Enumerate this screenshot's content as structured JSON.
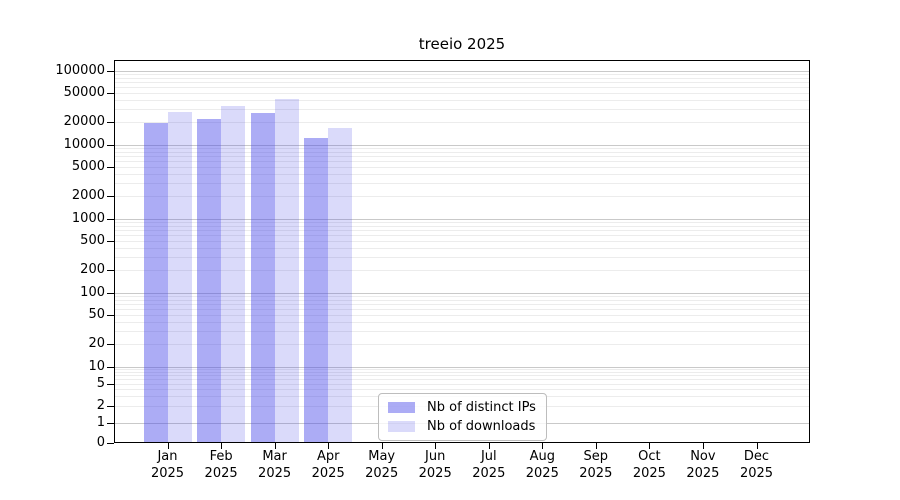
{
  "chart_data": {
    "type": "bar",
    "title": "treeio 2025",
    "xlabel": "",
    "ylabel": "",
    "yscale": "symlog (linear 0-1, log above; 1-2-5 labeled ticks)",
    "ylim": [
      0,
      140000
    ],
    "grid": "horizontal, major decade lines darker, minor log lines lighter",
    "legend_position": "lower center inside axes",
    "yticks": [
      0,
      1,
      2,
      5,
      10,
      20,
      50,
      100,
      200,
      500,
      1000,
      2000,
      5000,
      10000,
      20000,
      50000,
      100000
    ],
    "months": [
      "Jan",
      "Feb",
      "Mar",
      "Apr",
      "May",
      "Jun",
      "Jul",
      "Aug",
      "Sep",
      "Oct",
      "Nov",
      "Dec"
    ],
    "year_label": "2025",
    "series": [
      {
        "name": "Nb of distinct IPs",
        "color": "rgba(70,70,232,0.45)",
        "approx_hex_on_white": "#a9a9f3",
        "values": [
          19500,
          22000,
          26500,
          12300,
          null,
          null,
          null,
          null,
          null,
          null,
          null,
          null
        ]
      },
      {
        "name": "Nb of downloads",
        "color": "rgba(70,70,232,0.2)",
        "approx_hex_on_white": "#dcdcf9",
        "values": [
          28000,
          33500,
          41500,
          17000,
          null,
          null,
          null,
          null,
          null,
          null,
          null,
          null
        ]
      }
    ]
  }
}
